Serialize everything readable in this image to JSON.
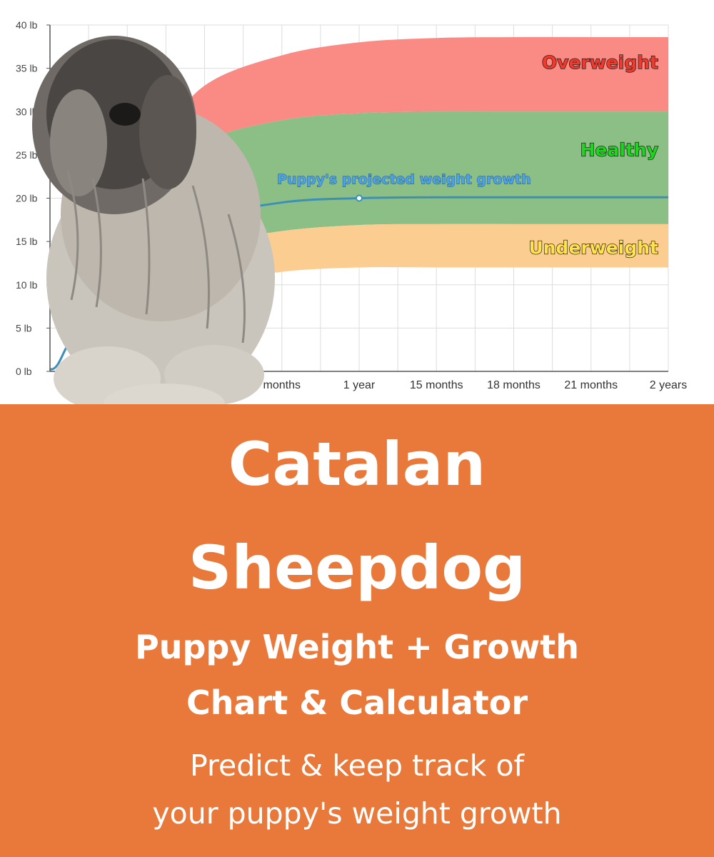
{
  "chart_data": {
    "type": "area",
    "x_tick_labels": [
      "months",
      "1 year",
      "15 months",
      "18 months",
      "21 months",
      "2 years"
    ],
    "x_months": [
      9,
      12,
      15,
      18,
      21,
      24
    ],
    "y_ticks": [
      "0 lb",
      "5 lb",
      "10 lb",
      "15 lb",
      "20 lb",
      "25 lb",
      "30 lb",
      "35 lb",
      "40 lb"
    ],
    "ylim": [
      0,
      40
    ],
    "xlim_months": [
      0,
      24
    ],
    "grid": true,
    "bands": [
      {
        "name": "Overweight",
        "color": "#fa8a84",
        "label_color": "#ef3a2e",
        "x": [
          4,
          6,
          9,
          12,
          15,
          18,
          21,
          24
        ],
        "lower": [
          21,
          26.5,
          29,
          29.8,
          30,
          30,
          30,
          30
        ],
        "upper": [
          26,
          33,
          36.5,
          38,
          38.5,
          38.6,
          38.6,
          38.6
        ]
      },
      {
        "name": "Healthy",
        "color": "#8cbf85",
        "label_color": "#1ed61e",
        "x": [
          4,
          6,
          9,
          12,
          15,
          18,
          21,
          24
        ],
        "lower": [
          12,
          14.5,
          16.2,
          16.9,
          17,
          17,
          17,
          17
        ],
        "upper": [
          21,
          26.5,
          29,
          29.8,
          30,
          30,
          30,
          30
        ]
      },
      {
        "name": "Underweight",
        "color": "#fccd90",
        "label_color": "#ffe24d",
        "x": [
          4,
          6,
          9,
          12,
          15,
          18,
          21,
          24
        ],
        "lower": [
          8,
          10,
          11.5,
          12,
          12,
          12,
          12,
          12
        ],
        "upper": [
          12,
          14.5,
          16.2,
          16.9,
          17,
          17,
          17,
          17
        ]
      }
    ],
    "series": [
      {
        "name": "Puppy's projected weight growth",
        "color": "#3d8fb8",
        "x": [
          0,
          0.3,
          1,
          3,
          6,
          9,
          12,
          15,
          18,
          21,
          24
        ],
        "y": [
          0.2,
          0.8,
          4.5,
          12,
          17.5,
          19.5,
          20.0,
          20.1,
          20.1,
          20.1,
          20.1
        ],
        "marker": {
          "x": 12,
          "y": 20.0
        }
      }
    ]
  },
  "banner": {
    "breed_line1": "Catalan",
    "breed_line2": "Sheepdog",
    "subtitle_line1": "Puppy Weight + Growth",
    "subtitle_line2": "Chart & Calculator",
    "tagline_line1": "Predict & keep track of",
    "tagline_line2": "your puppy's weight growth"
  },
  "colors": {
    "banner_bg": "#e8793a",
    "text": "#ffffff",
    "projection_label": "#4ea3e6"
  },
  "photo": {
    "subject": "Catalan Sheepdog"
  }
}
